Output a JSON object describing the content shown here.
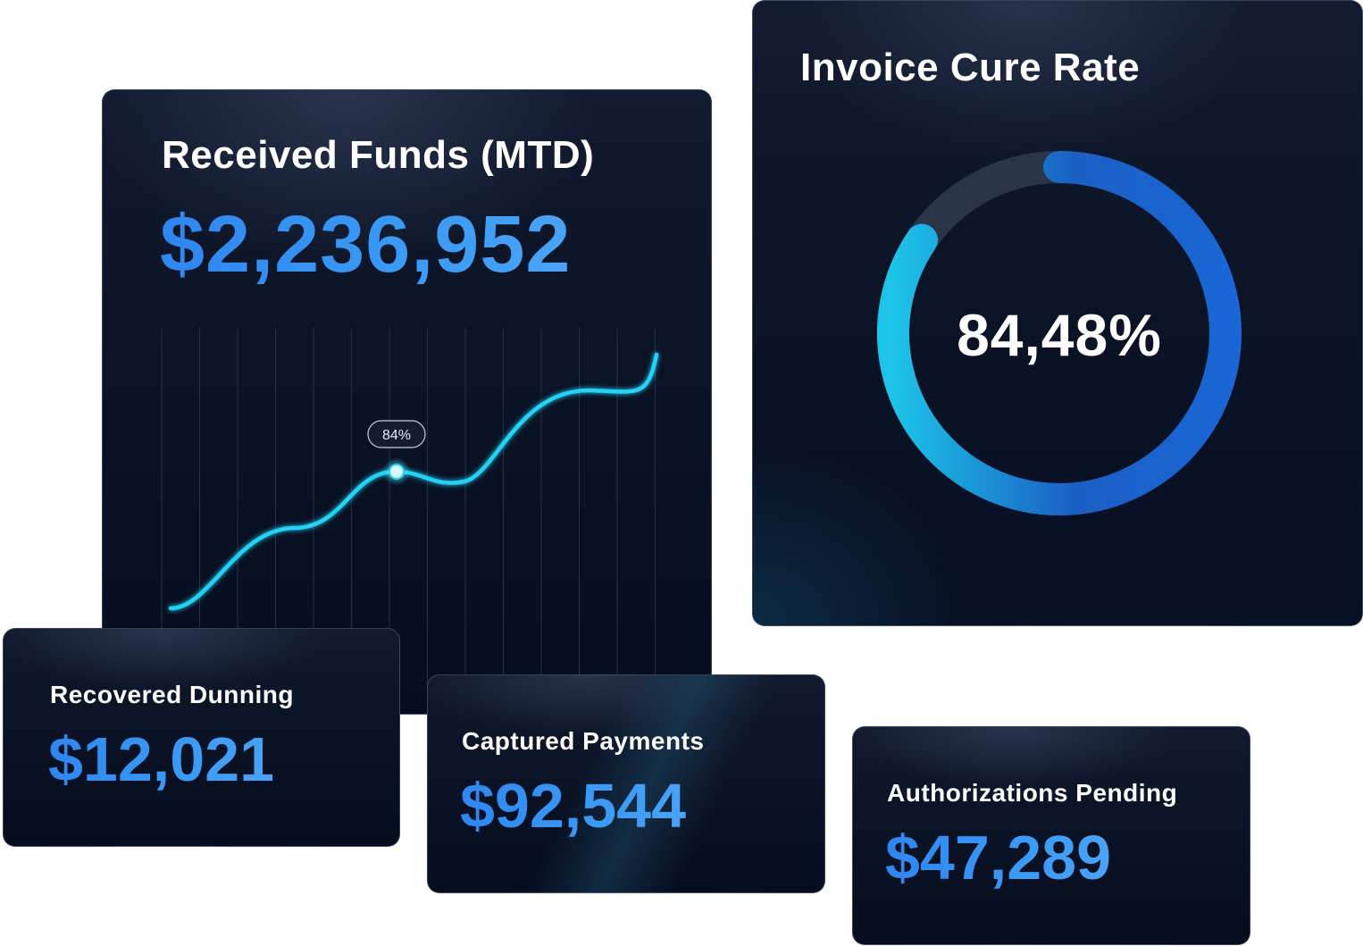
{
  "received_funds": {
    "title": "Received Funds (MTD)",
    "value": "$2,236,952",
    "chart_tooltip": "84%"
  },
  "invoice_cure_rate": {
    "title": "Invoice Cure Rate",
    "value": "84,48%",
    "percent": 84.48
  },
  "recovered_dunning": {
    "title": "Recovered Dunning",
    "value": "$12,021"
  },
  "captured_payments": {
    "title": "Captured Payments",
    "value": "$92,544"
  },
  "authorizations_pending": {
    "title": "Authorizations Pending",
    "value": "$47,289"
  },
  "colors": {
    "accent_blue": "#3a8ff2",
    "chart_line": "#22d3f5",
    "ring_start": "#1cc4e8",
    "ring_end": "#1a5fc4",
    "ring_track": "#2a3547"
  }
}
